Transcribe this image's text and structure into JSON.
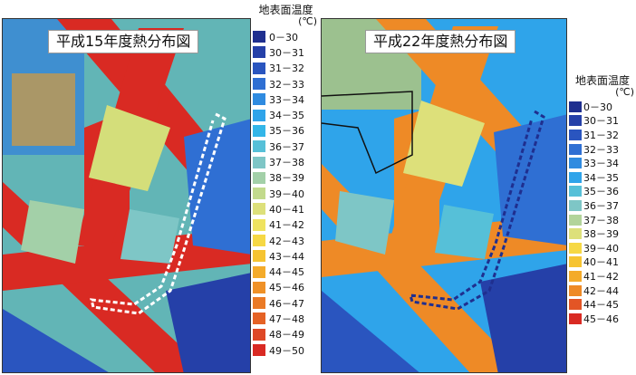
{
  "maps": [
    {
      "title": "平成15年度熱分布図"
    },
    {
      "title": "平成22年度熱分布図"
    }
  ],
  "legend1": {
    "heading": "地表面温度",
    "unit": "(℃)",
    "items": [
      {
        "label": "0－30",
        "color": "#1f2f8f"
      },
      {
        "label": "30－31",
        "color": "#2540a8"
      },
      {
        "label": "31－32",
        "color": "#2a55bf"
      },
      {
        "label": "32－33",
        "color": "#2f6fd3"
      },
      {
        "label": "33－34",
        "color": "#2f8be0"
      },
      {
        "label": "34－35",
        "color": "#2fa4ea"
      },
      {
        "label": "35－36",
        "color": "#33b6e8"
      },
      {
        "label": "36－37",
        "color": "#56c0d8"
      },
      {
        "label": "37－38",
        "color": "#7ec6c6"
      },
      {
        "label": "38－39",
        "color": "#a3d0a8"
      },
      {
        "label": "39－40",
        "color": "#c2da8c"
      },
      {
        "label": "40－41",
        "color": "#dde07a"
      },
      {
        "label": "41－42",
        "color": "#efe35f"
      },
      {
        "label": "42－43",
        "color": "#f6d844"
      },
      {
        "label": "43－44",
        "color": "#f6c431"
      },
      {
        "label": "44－45",
        "color": "#f4ab2a"
      },
      {
        "label": "45－46",
        "color": "#ef9127"
      },
      {
        "label": "46－47",
        "color": "#ea7a25"
      },
      {
        "label": "47－48",
        "color": "#e56225"
      },
      {
        "label": "48－49",
        "color": "#de4826"
      },
      {
        "label": "49－50",
        "color": "#d92a23"
      }
    ]
  },
  "legend2": {
    "heading": "地表面温度",
    "unit": "(℃)",
    "items": [
      {
        "label": "0－30",
        "color": "#1f2f8f"
      },
      {
        "label": "30－31",
        "color": "#2540a8"
      },
      {
        "label": "31－32",
        "color": "#2a55bf"
      },
      {
        "label": "32－33",
        "color": "#2f6fd3"
      },
      {
        "label": "33－34",
        "color": "#2f8be0"
      },
      {
        "label": "34－35",
        "color": "#2fa4ea"
      },
      {
        "label": "35－36",
        "color": "#56c0d8"
      },
      {
        "label": "36－37",
        "color": "#7ec6c6"
      },
      {
        "label": "37－38",
        "color": "#b2d49a"
      },
      {
        "label": "38－39",
        "color": "#dde07a"
      },
      {
        "label": "39－40",
        "color": "#f6d844"
      },
      {
        "label": "40－41",
        "color": "#f6c431"
      },
      {
        "label": "41－42",
        "color": "#f4ab2a"
      },
      {
        "label": "42－44",
        "color": "#ee8a26"
      },
      {
        "label": "44－45",
        "color": "#e35525"
      },
      {
        "label": "45－46",
        "color": "#d92a23"
      }
    ]
  }
}
